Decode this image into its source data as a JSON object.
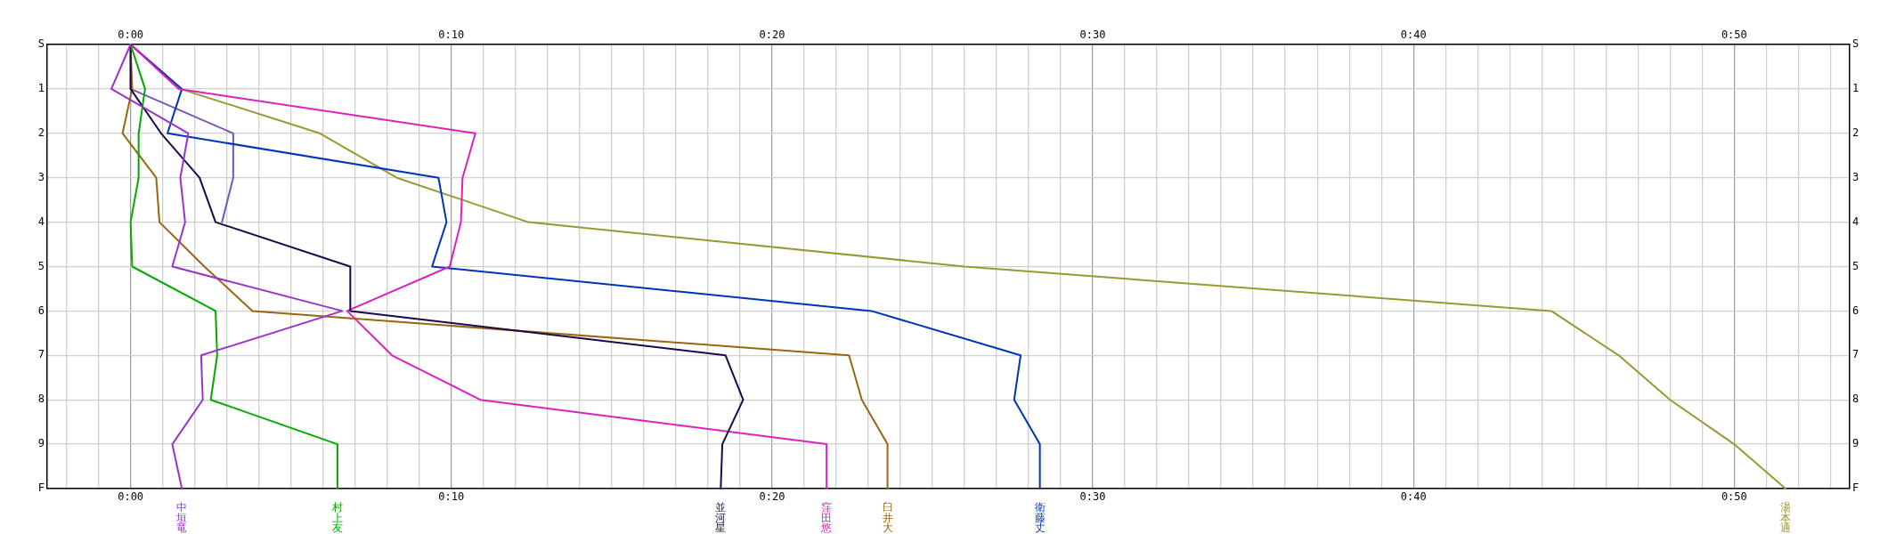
{
  "chart_data": {
    "type": "line",
    "orientation": "horizontal",
    "categories": [
      "S",
      "1",
      "2",
      "3",
      "4",
      "5",
      "6",
      "7",
      "8",
      "9",
      "F"
    ],
    "xlim": [
      -2.6,
      53.6
    ],
    "xticks": [
      {
        "value": -2,
        "label": null
      },
      {
        "value": -1,
        "label": null
      },
      {
        "value": 0,
        "label": "0:00"
      },
      {
        "value": 1,
        "label": null
      },
      {
        "value": 2,
        "label": null
      },
      {
        "value": 3,
        "label": null
      },
      {
        "value": 4,
        "label": null
      },
      {
        "value": 5,
        "label": null
      },
      {
        "value": 6,
        "label": null
      },
      {
        "value": 7,
        "label": null
      },
      {
        "value": 8,
        "label": null
      },
      {
        "value": 9,
        "label": null
      },
      {
        "value": 10,
        "label": "0:10"
      },
      {
        "value": 11,
        "label": null
      },
      {
        "value": 12,
        "label": null
      },
      {
        "value": 13,
        "label": null
      },
      {
        "value": 14,
        "label": null
      },
      {
        "value": 15,
        "label": null
      },
      {
        "value": 16,
        "label": null
      },
      {
        "value": 17,
        "label": null
      },
      {
        "value": 18,
        "label": null
      },
      {
        "value": 19,
        "label": null
      },
      {
        "value": 20,
        "label": "0:20"
      },
      {
        "value": 21,
        "label": null
      },
      {
        "value": 22,
        "label": null
      },
      {
        "value": 23,
        "label": null
      },
      {
        "value": 24,
        "label": null
      },
      {
        "value": 25,
        "label": null
      },
      {
        "value": 26,
        "label": null
      },
      {
        "value": 27,
        "label": null
      },
      {
        "value": 28,
        "label": null
      },
      {
        "value": 29,
        "label": null
      },
      {
        "value": 30,
        "label": "0:30"
      },
      {
        "value": 31,
        "label": null
      },
      {
        "value": 32,
        "label": null
      },
      {
        "value": 33,
        "label": null
      },
      {
        "value": 34,
        "label": null
      },
      {
        "value": 35,
        "label": null
      },
      {
        "value": 36,
        "label": null
      },
      {
        "value": 37,
        "label": null
      },
      {
        "value": 38,
        "label": null
      },
      {
        "value": 39,
        "label": null
      },
      {
        "value": 40,
        "label": "0:40"
      },
      {
        "value": 41,
        "label": null
      },
      {
        "value": 42,
        "label": null
      },
      {
        "value": 43,
        "label": null
      },
      {
        "value": 44,
        "label": null
      },
      {
        "value": 45,
        "label": null
      },
      {
        "value": 46,
        "label": null
      },
      {
        "value": 47,
        "label": null
      },
      {
        "value": 48,
        "label": null
      },
      {
        "value": 49,
        "label": null
      },
      {
        "value": 50,
        "label": "0:50"
      },
      {
        "value": 51,
        "label": null
      },
      {
        "value": 52,
        "label": null
      },
      {
        "value": 53,
        "label": null
      }
    ],
    "x2lim": [
      -2.6,
      53.6
    ],
    "x2ticks": [
      {
        "value": -2,
        "label": null
      },
      {
        "value": -1,
        "label": null
      },
      {
        "value": 0,
        "label": "0:00"
      },
      {
        "value": 1,
        "label": null
      },
      {
        "value": 2,
        "label": null
      },
      {
        "value": 3,
        "label": null
      },
      {
        "value": 4,
        "label": null
      },
      {
        "value": 5,
        "label": null
      },
      {
        "value": 6,
        "label": null
      },
      {
        "value": 7,
        "label": null
      },
      {
        "value": 8,
        "label": null
      },
      {
        "value": 9,
        "label": null
      },
      {
        "value": 10,
        "label": "0:10"
      },
      {
        "value": 11,
        "label": null
      },
      {
        "value": 12,
        "label": null
      },
      {
        "value": 13,
        "label": null
      },
      {
        "value": 14,
        "label": null
      },
      {
        "value": 15,
        "label": null
      },
      {
        "value": 16,
        "label": null
      },
      {
        "value": 17,
        "label": null
      },
      {
        "value": 18,
        "label": null
      },
      {
        "value": 19,
        "label": null
      },
      {
        "value": 20,
        "label": "0:20"
      },
      {
        "value": 21,
        "label": null
      },
      {
        "value": 22,
        "label": null
      },
      {
        "value": 23,
        "label": null
      },
      {
        "value": 24,
        "label": null
      },
      {
        "value": 25,
        "label": null
      },
      {
        "value": 26,
        "label": null
      },
      {
        "value": 27,
        "label": null
      },
      {
        "value": 28,
        "label": null
      },
      {
        "value": 29,
        "label": null
      },
      {
        "value": 30,
        "label": "0:30"
      },
      {
        "value": 31,
        "label": null
      },
      {
        "value": 32,
        "label": null
      },
      {
        "value": 33,
        "label": null
      },
      {
        "value": 34,
        "label": null
      },
      {
        "value": 35,
        "label": null
      },
      {
        "value": 36,
        "label": null
      },
      {
        "value": 37,
        "label": null
      },
      {
        "value": 38,
        "label": null
      },
      {
        "value": 39,
        "label": null
      },
      {
        "value": 40,
        "label": "0:40"
      },
      {
        "value": 41,
        "label": null
      },
      {
        "value": 42,
        "label": null
      },
      {
        "value": 43,
        "label": null
      },
      {
        "value": 44,
        "label": null
      },
      {
        "value": 45,
        "label": null
      },
      {
        "value": 46,
        "label": null
      },
      {
        "value": 47,
        "label": null
      },
      {
        "value": 48,
        "label": null
      },
      {
        "value": 49,
        "label": null
      },
      {
        "value": 50,
        "label": "0:50"
      },
      {
        "value": 51,
        "label": null
      },
      {
        "value": 52,
        "label": null
      },
      {
        "value": 53,
        "label": null
      }
    ],
    "grid": true,
    "legend": false,
    "marker": "none",
    "line_style": "solid",
    "series": [
      {
        "name": "中垣竜",
        "color": "#9933cc",
        "values": [
          0,
          -0.6,
          1.8,
          1.55,
          1.7,
          1.3,
          6.6,
          2.2,
          2.25,
          1.3,
          1.6
        ]
      },
      {
        "name": "村上友",
        "color": "#00aa00",
        "values": [
          0,
          0.45,
          0.25,
          0.25,
          0,
          0.05,
          2.65,
          2.7,
          2.5,
          6.45,
          6.45
        ]
      },
      {
        "name": "並河星",
        "color": "#1a0a4a",
        "values": [
          0,
          0,
          0.95,
          2.15,
          2.65,
          6.85,
          6.85,
          18.55,
          19.1,
          18.45,
          18.4
        ]
      },
      {
        "name": "窪田悠",
        "color": "#dd22bb",
        "values": [
          0,
          1.5,
          10.75,
          10.35,
          10.3,
          9.95,
          6.75,
          8.15,
          10.9,
          21.7,
          21.7
        ]
      },
      {
        "name": "臼井大",
        "color": "#996611",
        "values": [
          0,
          0.05,
          -0.25,
          0.8,
          0.9,
          2.3,
          3.8,
          22.4,
          22.8,
          23.6,
          23.6
        ]
      },
      {
        "name": "衛藤丈",
        "color": "#0033bb",
        "values": [
          0,
          1.6,
          1.15,
          9.6,
          9.85,
          9.4,
          23.1,
          27.75,
          27.55,
          28.35,
          28.35
        ]
      },
      {
        "name": "湯本通",
        "color": "#999933",
        "values": [
          0,
          1.55,
          5.9,
          8.3,
          12.4,
          26,
          44.3,
          46.4,
          48,
          50,
          51.6
        ]
      },
      {
        "color": "#7755bb",
        "values": [
          0,
          0,
          3.2,
          3.2,
          2.85,
          null,
          null,
          null,
          null,
          null,
          null
        ]
      }
    ]
  }
}
